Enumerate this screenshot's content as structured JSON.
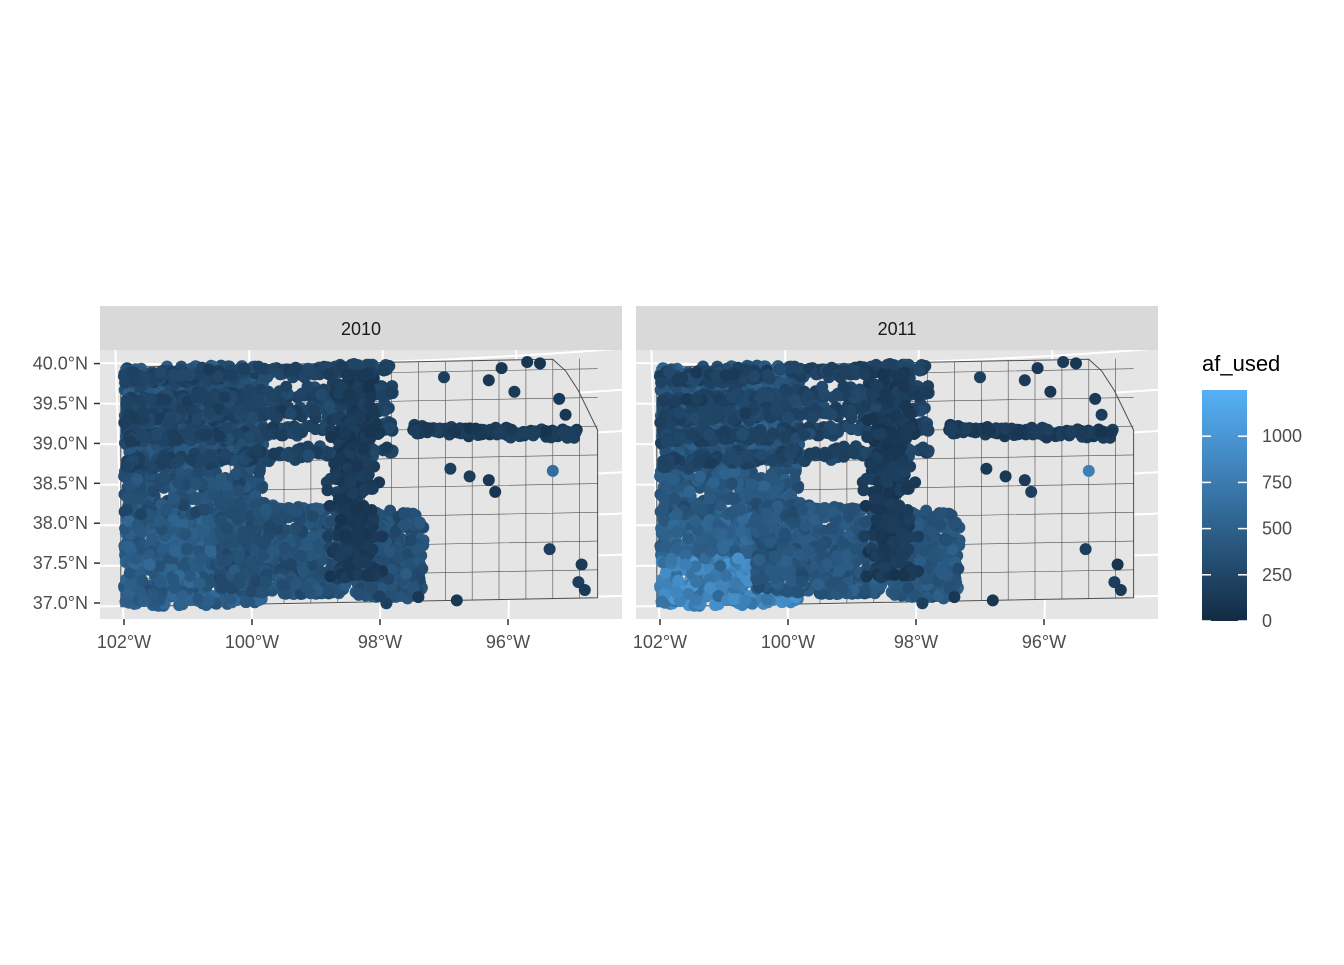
{
  "chart_data": {
    "type": "scatter",
    "facets": [
      {
        "label": "2010"
      },
      {
        "label": "2011"
      }
    ],
    "x_axis": {
      "range": [
        -102.4,
        -94.4
      ],
      "ticks": [
        {
          "value": -102,
          "label": "102°W"
        },
        {
          "value": -100,
          "label": "100°W"
        },
        {
          "value": -98,
          "label": "98°W"
        },
        {
          "value": -96,
          "label": "96°W"
        }
      ]
    },
    "y_axis": {
      "range": [
        36.8,
        40.2
      ],
      "ticks": [
        {
          "value": 37.0,
          "label": "37.0°N"
        },
        {
          "value": 37.5,
          "label": "37.5°N"
        },
        {
          "value": 38.0,
          "label": "38.0°N"
        },
        {
          "value": 38.5,
          "label": "38.5°N"
        },
        {
          "value": 39.0,
          "label": "39.0°N"
        },
        {
          "value": 39.5,
          "label": "39.5°N"
        },
        {
          "value": 40.0,
          "label": "40.0°N"
        }
      ]
    },
    "legend": {
      "title": "af_used",
      "position": "right",
      "range": [
        0,
        1250
      ],
      "ticks": [
        {
          "value": 0,
          "label": "0"
        },
        {
          "value": 250,
          "label": "250"
        },
        {
          "value": 500,
          "label": "500"
        },
        {
          "value": 750,
          "label": "750"
        },
        {
          "value": 1000,
          "label": "1000"
        }
      ],
      "low_color": "#132B43",
      "high_color": "#56B1F7"
    },
    "panel_background": "#e5e5e5",
    "strip_background": "#d9d9d9",
    "grid": true,
    "point_density_note": "thousands of well points per facet"
  }
}
